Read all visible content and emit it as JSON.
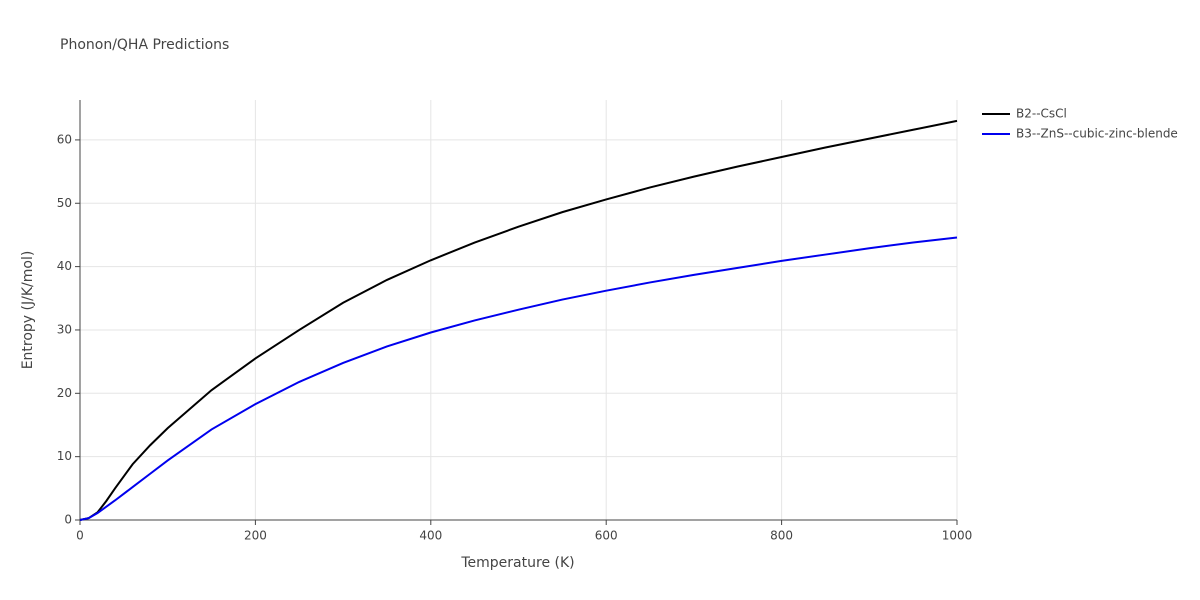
{
  "chart_data": {
    "type": "line",
    "title": "Phonon/QHA Predictions",
    "x_label": "Temperature (K)",
    "y_label": "Entropy (J/K/mol)",
    "x": [
      0,
      10,
      20,
      30,
      40,
      60,
      80,
      100,
      150,
      200,
      250,
      300,
      350,
      400,
      450,
      500,
      550,
      600,
      650,
      700,
      750,
      800,
      850,
      900,
      950,
      1000
    ],
    "series": [
      {
        "name": "B2--CsCl",
        "color": "#000000",
        "values": [
          0,
          0.3,
          1.2,
          3,
          5,
          8.8,
          11.8,
          14.5,
          20.5,
          25.5,
          30,
          34.3,
          37.9,
          41,
          43.8,
          46.3,
          48.6,
          50.6,
          52.5,
          54.2,
          55.8,
          57.3,
          58.8,
          60.2,
          61.6,
          63
        ]
      },
      {
        "name": "B3--ZnS--cubic-zinc-blende",
        "color": "#0000ee",
        "values": [
          0,
          0.3,
          1.1,
          2.1,
          3.1,
          5.2,
          7.3,
          9.4,
          14.3,
          18.3,
          21.8,
          24.8,
          27.4,
          29.6,
          31.5,
          33.2,
          34.8,
          36.2,
          37.5,
          38.7,
          39.8,
          40.9,
          41.9,
          42.9,
          43.8,
          44.6
        ]
      }
    ],
    "xlim": [
      0,
      1000
    ],
    "ylim": [
      0,
      66.3
    ],
    "xticks": [
      0,
      200,
      400,
      600,
      800,
      1000
    ],
    "yticks": [
      0,
      10,
      20,
      30,
      40,
      50,
      60
    ],
    "grid": true,
    "legend": "outside-right"
  }
}
